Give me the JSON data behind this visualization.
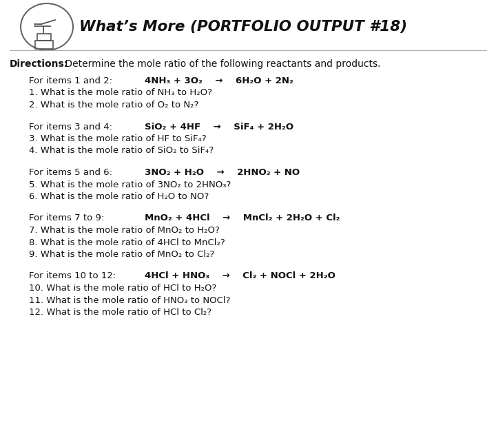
{
  "title": "What’s More (PORTFOLIO OUTPUT #18)",
  "bg_color": "#ffffff",
  "text_color": "#1a1a1a",
  "directions_bold": "Directions:",
  "directions_rest": " Determine the mole ratio of the following reactants and products.",
  "sections": [
    {
      "header_normal": "For items 1 and 2:",
      "header_bold": "4NH₃ + 3O₂    →    6H₂O + 2N₂",
      "questions": [
        "1. What is the mole ratio of NH₃ to H₂O?",
        "2. What is the mole ratio of O₂ to N₂?"
      ],
      "num_q": 2
    },
    {
      "header_normal": "For items 3 and 4:",
      "header_bold": "SiO₂ + 4HF    →    SiF₄ + 2H₂O",
      "questions": [
        "3. What is the mole ratio of HF to SiF₄?",
        "4. What is the mole ratio of SiO₂ to SiF₄?"
      ],
      "num_q": 2
    },
    {
      "header_normal": "For items 5 and 6:",
      "header_bold": "3NO₂ + H₂O    →    2HNO₃ + NO",
      "questions": [
        "5. What is the mole ratio of 3NO₂ to 2HNO₃?",
        "6. What is the mole ratio of H₂O to NO?"
      ],
      "num_q": 2
    },
    {
      "header_normal": "For items 7 to 9:",
      "header_bold": "MnO₂ + 4HCl    →    MnCl₂ + 2H₂O + Cl₂",
      "questions": [
        "7. What is the mole ratio of MnO₂ to H₂O?",
        "8. What is the mole ratio of 4HCl to MnCl₂?",
        "9. What is the mole ratio of MnO₂ to Cl₂?"
      ],
      "num_q": 3
    },
    {
      "header_normal": "For items 10 to 12:",
      "header_bold": "4HCl + HNO₃    →    Cl₂ + NOCl + 2H₂O",
      "questions": [
        "10. What is the mole ratio of HCl to H₂O?",
        "11. What is the mole ratio of HNO₃ to NOCl?",
        "12. What is the mole ratio of HCl to Cl₂?"
      ],
      "num_q": 3
    }
  ]
}
